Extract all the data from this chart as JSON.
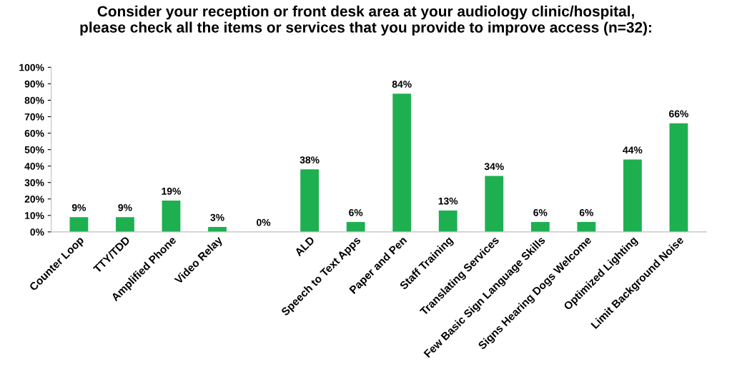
{
  "chart_data": {
    "type": "bar",
    "title": "Consider your reception or front desk area at your audiology clinic/hospital,\nplease check all the items or services that you provide to improve access (n=32):",
    "categories": [
      "Counter Loop",
      "TTY/TDD",
      "Amplified Phone",
      "Video Relay",
      null,
      "ALD",
      "Speech to Text Apps",
      "Paper and Pen",
      "Staff Training",
      "Translating Services",
      "Few Basic Sign Language Skills",
      "Signs Hearing Dogs Welcome",
      "Optimized Lighting",
      "Limit Background Noise"
    ],
    "values": [
      9,
      9,
      19,
      3,
      0,
      38,
      6,
      84,
      13,
      34,
      6,
      6,
      44,
      66
    ],
    "value_labels": [
      "9%",
      "9%",
      "19%",
      "3%",
      "0%",
      "38%",
      "6%",
      "84%",
      "13%",
      "34%",
      "6%",
      "6%",
      "44%",
      "66%"
    ],
    "color": "#1eb050",
    "ylim": [
      0,
      100
    ],
    "yticks": [
      {
        "value": 0,
        "label": "0%"
      },
      {
        "value": 10,
        "label": "10%"
      },
      {
        "value": 20,
        "label": "20%"
      },
      {
        "value": 30,
        "label": "30%"
      },
      {
        "value": 40,
        "label": "40%"
      },
      {
        "value": 50,
        "label": "50%"
      },
      {
        "value": 60,
        "label": "60%"
      },
      {
        "value": 70,
        "label": "70%"
      },
      {
        "value": 80,
        "label": "80%"
      },
      {
        "value": 90,
        "label": "90%"
      },
      {
        "value": 100,
        "label": "100%"
      }
    ],
    "grid": false,
    "legend": false
  }
}
